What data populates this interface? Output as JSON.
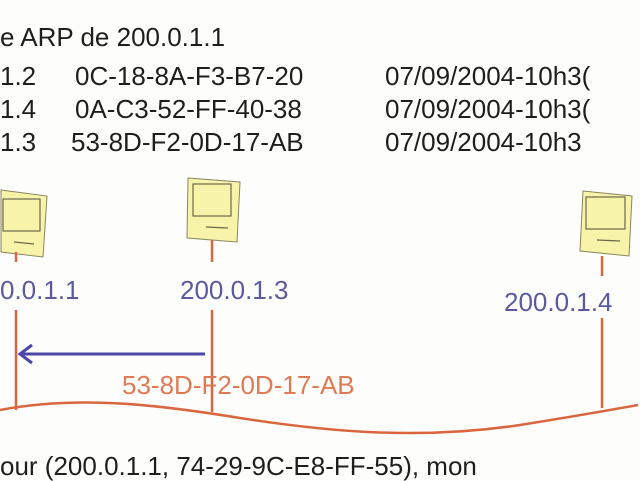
{
  "arp_table": {
    "title": "e ARP de 200.0.1.1",
    "rows": [
      {
        "ip": "1.2",
        "mac": "0C-18-8A-F3-B7-20",
        "time": "07/09/2004-10h3("
      },
      {
        "ip": "1.4",
        "mac": "0A-C3-52-FF-40-38",
        "time": "07/09/2004-10h3("
      },
      {
        "ip": "1.3",
        "mac": "53-8D-F2-0D-17-AB",
        "time": "07/09/2004-10h3"
      }
    ]
  },
  "hosts": [
    {
      "ip": "0.0.1.1"
    },
    {
      "ip": "200.0.1.3"
    },
    {
      "ip": "200.0.1.4"
    }
  ],
  "reply_mac": "53-8D-F2-0D-17-AB",
  "bottom_text": "our (200.0.1.1, 74-29-9C-E8-FF-55), mon",
  "colors": {
    "wire": "#d9663f",
    "ip_text": "#5b5aa0",
    "arrow": "#4a47a8",
    "computer": "#f7f3a8"
  }
}
